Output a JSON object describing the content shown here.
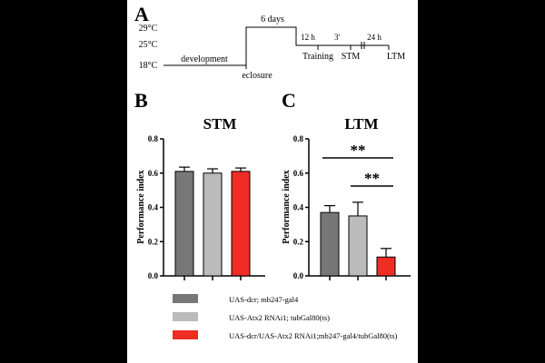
{
  "panels": {
    "a": {
      "letter": "A"
    },
    "b": {
      "letter": "B"
    },
    "c": {
      "letter": "C"
    }
  },
  "timeline": {
    "temps": [
      "29°C",
      "25°C",
      "18°C"
    ],
    "development": "development",
    "eclosure": "eclosure",
    "six_days": "6 days",
    "twelve_h": "12 h",
    "three_min": "3'",
    "twentyfour_h": "24 h",
    "training": "Training",
    "stm": "STM",
    "ltm": "LTM"
  },
  "colors": {
    "series1": "#777777",
    "series2": "#bbbbbb",
    "series3": "#ee2d24"
  },
  "chart_data": [
    {
      "type": "bar",
      "title": "STM",
      "ylabel": "Performance index",
      "ylim": [
        0.0,
        0.8
      ],
      "yticks": [
        "0.0",
        "0.2",
        "0.4",
        "0.6",
        "0.8"
      ],
      "series": [
        {
          "name": "UAS-dcr; mb247-gal4",
          "value": 0.61,
          "error": 0.025
        },
        {
          "name": "UAS-Atx2 RNAi1; tubGal80(ts)",
          "value": 0.6,
          "error": 0.025
        },
        {
          "name": "UAS-dcr/UAS-Atx2 RNAi1;mb247-gal4/tubGal80(ts)",
          "value": 0.61,
          "error": 0.02
        }
      ]
    },
    {
      "type": "bar",
      "title": "LTM",
      "ylabel": "Performance index",
      "ylim": [
        0.0,
        0.8
      ],
      "yticks": [
        "0.0",
        "0.2",
        "0.4",
        "0.6",
        "0.8"
      ],
      "series": [
        {
          "name": "UAS-dcr; mb247-gal4",
          "value": 0.37,
          "error": 0.04
        },
        {
          "name": "UAS-Atx2 RNAi1; tubGal80(ts)",
          "value": 0.35,
          "error": 0.08
        },
        {
          "name": "UAS-dcr/UAS-Atx2 RNAi1;mb247-gal4/tubGal80(ts)",
          "value": 0.11,
          "error": 0.05
        }
      ],
      "annotations": [
        {
          "label": "**",
          "from": 0,
          "to": 2
        },
        {
          "label": "**",
          "from": 1,
          "to": 2
        }
      ]
    }
  ],
  "legend": [
    "UAS-dcr; mb247-gal4",
    "UAS-Atx2 RNAi1; tubGal80(ts)",
    "UAS-dcr/UAS-Atx2 RNAi1;mb247-gal4/tubGal80(ts)"
  ]
}
